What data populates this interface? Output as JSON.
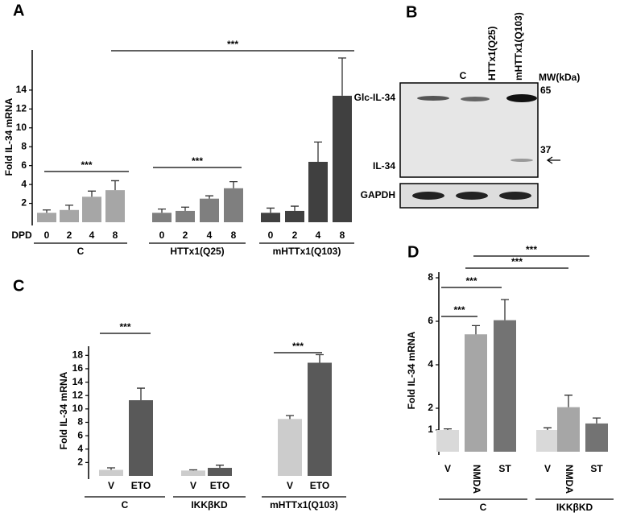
{
  "chart_data": [
    {
      "type": "bar",
      "panel": "A",
      "y_label": "Fold IL-34 mRNA",
      "x_label": "DPD",
      "ylim": [
        0,
        18
      ],
      "yticks": [
        2,
        4,
        6,
        8,
        10,
        12,
        14
      ],
      "annotations": [
        "***",
        "***",
        "***"
      ],
      "groups": [
        {
          "name": "C",
          "categories": [
            "0",
            "2",
            "4",
            "8"
          ],
          "values": [
            1.0,
            1.3,
            2.7,
            3.4
          ],
          "errors": [
            0.3,
            0.5,
            0.6,
            1.0
          ],
          "color": "#a6a6a6"
        },
        {
          "name": "HTTx1(Q25)",
          "categories": [
            "0",
            "2",
            "4",
            "8"
          ],
          "values": [
            1.0,
            1.2,
            2.5,
            3.6
          ],
          "errors": [
            0.4,
            0.4,
            0.3,
            0.7
          ],
          "color": "#7f7f7f"
        },
        {
          "name": "mHTTx1(Q103)",
          "categories": [
            "0",
            "2",
            "4",
            "8"
          ],
          "values": [
            1.0,
            1.2,
            6.4,
            13.4
          ],
          "errors": [
            0.5,
            0.5,
            2.1,
            4.0
          ],
          "color": "#404040"
        }
      ]
    },
    {
      "type": "bar",
      "panel": "C",
      "y_label": "Fold IL-34 mRNA",
      "ylim": [
        0,
        19
      ],
      "yticks": [
        2,
        4,
        6,
        8,
        10,
        12,
        14,
        16,
        18
      ],
      "annotations": [
        "***",
        "***"
      ],
      "groups": [
        {
          "name": "C",
          "categories": [
            "V",
            "ETO"
          ],
          "values": [
            0.9,
            11.3
          ],
          "errors": [
            0.3,
            1.8
          ],
          "colors": [
            "#cccccc",
            "#595959"
          ]
        },
        {
          "name": "IKKβKD",
          "categories": [
            "V",
            "ETO"
          ],
          "values": [
            0.8,
            1.2
          ],
          "errors": [
            0.1,
            0.4
          ],
          "colors": [
            "#cccccc",
            "#595959"
          ]
        },
        {
          "name": "mHTTx1(Q103)",
          "categories": [
            "V",
            "ETO"
          ],
          "values": [
            8.5,
            16.9
          ],
          "errors": [
            0.5,
            1.2
          ],
          "colors": [
            "#cccccc",
            "#595959"
          ]
        }
      ]
    },
    {
      "type": "bar",
      "panel": "D",
      "y_label": "Fold IL-34 mRNA",
      "ylim": [
        0,
        8
      ],
      "yticks": [
        1,
        2,
        4,
        6,
        8
      ],
      "annotations": [
        "***",
        "***",
        "***",
        "***"
      ],
      "groups": [
        {
          "name": "C",
          "categories": [
            "V",
            "NMDA",
            "ST"
          ],
          "values": [
            1.0,
            5.4,
            6.05
          ],
          "errors": [
            0.05,
            0.4,
            0.95
          ],
          "colors": [
            "#d9d9d9",
            "#a6a6a6",
            "#737373"
          ]
        },
        {
          "name": "IKKβKD",
          "categories": [
            "V",
            "NMDA",
            "ST"
          ],
          "values": [
            1.0,
            2.05,
            1.3
          ],
          "errors": [
            0.1,
            0.55,
            0.25
          ],
          "colors": [
            "#d9d9d9",
            "#a6a6a6",
            "#737373"
          ]
        }
      ]
    }
  ],
  "blot": {
    "panel": "B",
    "lanes": [
      "C",
      "HTTx1(Q25)",
      "mHTTx1(Q103)"
    ],
    "mw_title": "MW(kDa)",
    "mw": [
      "65",
      "37"
    ],
    "bands": [
      "Glc-IL-34",
      "IL-34",
      "GAPDH"
    ]
  }
}
